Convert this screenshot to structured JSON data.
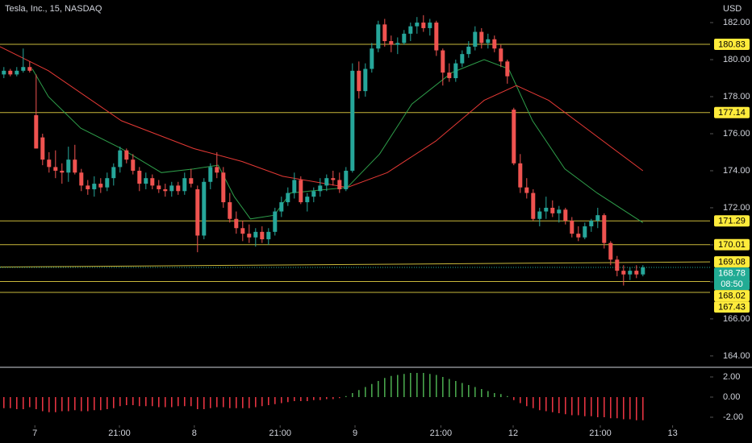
{
  "chart_data": [
    {
      "type": "candlestick",
      "title": "Tesla, Inc., 15, NASDAQ",
      "ylabel": "USD",
      "open": [
        179.2,
        179.4,
        179.2,
        179.4,
        179.6,
        177.0,
        175.8,
        174.6,
        174.2,
        174.0,
        173.9,
        174.6,
        173.9,
        173.2,
        173.0,
        173.3,
        173.1,
        173.6,
        174.2,
        175.1,
        174.6,
        174.0,
        173.3,
        173.6,
        173.2,
        173.0,
        172.9,
        173.2,
        172.9,
        173.6,
        173.0,
        170.5,
        173.4,
        174.2,
        173.9,
        172.3,
        171.4,
        170.9,
        170.6,
        170.4,
        170.7,
        170.3,
        170.7,
        171.8,
        172.3,
        172.8,
        173.5,
        172.3,
        172.6,
        172.9,
        173.2,
        173.6,
        173.5,
        173.0,
        174.0,
        179.4,
        178.3,
        179.5,
        180.6,
        181.9,
        181.0,
        180.8,
        180.9,
        181.4,
        181.8,
        182.0,
        181.7,
        182.0,
        180.5,
        179.3,
        179.0,
        179.8,
        180.3,
        180.7,
        181.5,
        180.9,
        181.1,
        180.6,
        179.9,
        177.3,
        174.4,
        173.1,
        172.8,
        171.4,
        171.8,
        172.0,
        171.7,
        171.9,
        171.3,
        170.6,
        170.4,
        171.0,
        171.3,
        171.6,
        170.1,
        169.2,
        168.6,
        168.4,
        168.6,
        168.4
      ],
      "high": [
        179.6,
        179.5,
        179.6,
        180.6,
        179.9,
        179.2,
        176.0,
        175.0,
        175.1,
        174.4,
        175.3,
        175.4,
        174.1,
        173.5,
        173.7,
        173.6,
        173.9,
        174.4,
        175.3,
        175.2,
        174.9,
        174.2,
        173.9,
        173.8,
        173.5,
        173.3,
        173.4,
        173.4,
        173.9,
        174.1,
        173.2,
        173.6,
        174.4,
        175.0,
        174.2,
        172.8,
        171.8,
        171.3,
        171.1,
        170.9,
        171.0,
        170.9,
        172.0,
        172.6,
        173.1,
        173.9,
        173.7,
        172.8,
        173.1,
        173.6,
        173.8,
        174.0,
        173.9,
        174.2,
        179.8,
        179.9,
        179.8,
        180.9,
        182.1,
        182.2,
        181.3,
        181.2,
        181.6,
        182.0,
        182.3,
        182.4,
        182.2,
        182.1,
        180.6,
        179.8,
        180.0,
        180.5,
        181.0,
        181.8,
        181.7,
        181.4,
        181.3,
        180.8,
        180.0,
        177.4,
        174.9,
        173.6,
        173.0,
        172.0,
        172.6,
        172.4,
        172.1,
        172.0,
        171.5,
        171.0,
        171.2,
        171.4,
        172.0,
        171.7,
        170.2,
        169.4,
        168.9,
        168.8,
        168.9,
        168.9
      ],
      "low": [
        179.0,
        179.1,
        179.1,
        179.3,
        179.3,
        175.2,
        174.3,
        173.9,
        173.6,
        173.3,
        173.4,
        173.8,
        172.9,
        172.7,
        172.6,
        172.8,
        172.9,
        173.2,
        173.9,
        174.4,
        173.8,
        172.9,
        173.0,
        173.0,
        172.8,
        172.6,
        172.6,
        172.7,
        172.7,
        173.1,
        169.6,
        170.3,
        173.0,
        173.6,
        172.0,
        171.2,
        170.6,
        170.2,
        170.1,
        169.9,
        170.1,
        170.0,
        170.5,
        171.5,
        172.1,
        172.5,
        172.2,
        171.8,
        172.3,
        172.6,
        172.9,
        173.2,
        172.8,
        172.9,
        173.9,
        177.9,
        178.0,
        179.3,
        180.4,
        180.7,
        180.4,
        180.3,
        180.8,
        181.0,
        181.4,
        181.5,
        181.3,
        180.2,
        178.6,
        178.8,
        178.8,
        179.6,
        180.1,
        180.5,
        180.6,
        180.6,
        180.4,
        179.6,
        178.7,
        174.3,
        172.8,
        172.5,
        171.3,
        171.0,
        171.4,
        171.5,
        171.2,
        171.1,
        170.4,
        170.2,
        170.3,
        170.7,
        170.9,
        169.8,
        168.9,
        168.3,
        167.8,
        168.1,
        168.2,
        168.3
      ],
      "close": [
        179.4,
        179.2,
        179.4,
        179.6,
        179.4,
        175.2,
        174.6,
        174.2,
        174.0,
        173.9,
        174.6,
        173.9,
        173.2,
        173.0,
        173.3,
        173.1,
        173.6,
        174.2,
        175.1,
        174.6,
        174.0,
        173.3,
        173.6,
        173.2,
        173.0,
        172.9,
        173.2,
        172.9,
        173.6,
        173.3,
        170.5,
        173.4,
        174.2,
        173.9,
        172.3,
        171.4,
        170.9,
        170.6,
        170.4,
        170.7,
        170.3,
        170.7,
        171.8,
        172.3,
        172.8,
        173.5,
        172.3,
        172.6,
        172.9,
        173.2,
        173.6,
        173.5,
        173.0,
        174.0,
        179.4,
        178.3,
        179.5,
        180.6,
        181.9,
        181.0,
        180.8,
        180.9,
        181.4,
        181.8,
        182.0,
        181.7,
        182.0,
        180.5,
        179.3,
        179.0,
        179.8,
        180.3,
        180.7,
        181.5,
        180.9,
        181.1,
        180.6,
        179.9,
        179.1,
        174.4,
        173.1,
        172.8,
        171.4,
        171.8,
        172.0,
        171.7,
        171.9,
        171.3,
        170.6,
        170.4,
        171.0,
        171.3,
        171.6,
        170.1,
        169.2,
        168.6,
        168.4,
        168.6,
        168.4,
        168.78
      ],
      "up_color": "#26a69a",
      "down_color": "#ef5350",
      "xlim": [
        -0.6,
        109.4
      ],
      "xticks": [
        {
          "value": 4.8,
          "label": "7"
        },
        {
          "value": 17.9,
          "label": "21:00"
        },
        {
          "value": 29.5,
          "label": "8"
        },
        {
          "value": 42.8,
          "label": "21:00"
        },
        {
          "value": 54.4,
          "label": "9"
        },
        {
          "value": 67.7,
          "label": "21:00"
        },
        {
          "value": 78.9,
          "label": "12"
        },
        {
          "value": 92.4,
          "label": "21:00"
        },
        {
          "value": 103.6,
          "label": "13"
        }
      ],
      "ylim": [
        163.43,
        183.22
      ],
      "yticks": [
        {
          "value": 164,
          "label": "164.00"
        },
        {
          "value": 166,
          "label": "166.00"
        },
        {
          "value": 168,
          "label": "168.00"
        },
        {
          "value": 170,
          "label": "170.00"
        },
        {
          "value": 172,
          "label": "172.00"
        },
        {
          "value": 174,
          "label": "174.00"
        },
        {
          "value": 176,
          "label": "176.00"
        },
        {
          "value": 178,
          "label": "178.00"
        },
        {
          "value": 180,
          "label": "180.00"
        },
        {
          "value": 182,
          "label": "182.00"
        }
      ],
      "moving_averages": [
        {
          "color": "#2e9e4a",
          "x": [
            4.4,
            6.9,
            11.9,
            18.2,
            24.4,
            29.4,
            33.2,
            35.7,
            38.2,
            41.9,
            44.4,
            53.2,
            58.2,
            63.2,
            69.4,
            74.4,
            78.2,
            81.9,
            86.9,
            91.9,
            99
          ],
          "values": [
            179.5,
            178.0,
            176.3,
            175.2,
            173.9,
            174.1,
            174.3,
            172.6,
            171.4,
            171.6,
            172.8,
            173.1,
            174.9,
            177.6,
            179.3,
            180.0,
            179.5,
            176.7,
            174.1,
            172.8,
            171.2
          ]
        },
        {
          "color": "#e53935",
          "x": [
            -0.6,
            6.9,
            18.2,
            29.4,
            36.9,
            43.2,
            53.2,
            59.4,
            66.9,
            74.4,
            79.4,
            84.4,
            89.4,
            99
          ],
          "values": [
            180.7,
            179.4,
            176.7,
            175.2,
            174.5,
            173.7,
            173.1,
            173.9,
            175.6,
            177.8,
            178.6,
            177.8,
            176.5,
            174.0
          ]
        }
      ],
      "levels": [
        180.83,
        177.14,
        171.29,
        170.01,
        168.02,
        167.43
      ],
      "level_color": "#c9b83b",
      "trendline": {
        "x": [
          -0.6,
          109.4
        ],
        "values": [
          168.8,
          169.08
        ]
      },
      "last_price": 168.78,
      "countdown": "08:50",
      "last_color": "#22ab94"
    },
    {
      "type": "bar",
      "values": [
        -1.1,
        -1.1,
        -1.2,
        -1.2,
        -1.0,
        -1.2,
        -1.4,
        -1.5,
        -1.5,
        -1.4,
        -1.4,
        -1.3,
        -1.4,
        -1.4,
        -1.3,
        -1.3,
        -1.2,
        -1.1,
        -0.9,
        -0.8,
        -0.8,
        -0.9,
        -0.9,
        -0.9,
        -1.0,
        -1.0,
        -1.0,
        -0.9,
        -0.9,
        -0.9,
        -1.2,
        -1.2,
        -1.1,
        -1.0,
        -1.0,
        -1.1,
        -1.1,
        -1.1,
        -1.1,
        -1.0,
        -0.9,
        -0.8,
        -0.7,
        -0.6,
        -0.5,
        -0.4,
        -0.4,
        -0.4,
        -0.3,
        -0.3,
        -0.2,
        -0.2,
        -0.1,
        0.1,
        0.4,
        0.7,
        1.0,
        1.3,
        1.6,
        1.9,
        2.1,
        2.2,
        2.3,
        2.4,
        2.4,
        2.4,
        2.3,
        2.2,
        2.0,
        1.8,
        1.6,
        1.4,
        1.2,
        1.0,
        0.8,
        0.6,
        0.4,
        0.3,
        0.1,
        -0.3,
        -0.6,
        -0.9,
        -1.1,
        -1.3,
        -1.4,
        -1.5,
        -1.6,
        -1.7,
        -1.8,
        -1.8,
        -1.9,
        -1.9,
        -2.0,
        -2.0,
        -2.1,
        -2.1,
        -2.2,
        -2.2,
        -2.3,
        -2.3
      ],
      "ylim": [
        -2.8,
        2.96
      ],
      "yticks": [
        {
          "value": 2,
          "label": "2.00"
        },
        {
          "value": 0,
          "label": "0.00"
        },
        {
          "value": -2,
          "label": "-2.00"
        }
      ],
      "up_color": "#4caf50",
      "down_color": "#f23645"
    }
  ]
}
